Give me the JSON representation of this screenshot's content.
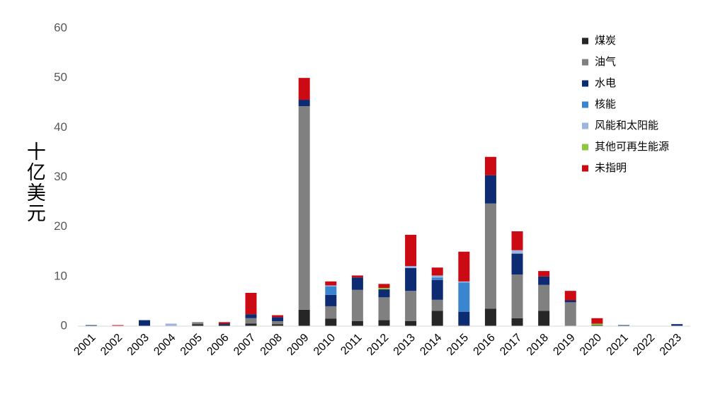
{
  "chart_data": {
    "type": "stacked_bar",
    "ylabel": "十亿美元",
    "categories": [
      "2001",
      "2002",
      "2003",
      "2004",
      "2005",
      "2006",
      "2007",
      "2008",
      "2009",
      "2010",
      "2011",
      "2012",
      "2013",
      "2014",
      "2015",
      "2016",
      "2017",
      "2018",
      "2019",
      "2020",
      "2021",
      "2022",
      "2023"
    ],
    "ylim": [
      0,
      60
    ],
    "yticks": [
      0,
      10,
      20,
      30,
      40,
      50,
      60
    ],
    "grid": false,
    "legend": "upper right",
    "series": [
      {
        "name": "煤炭",
        "color": "#262626",
        "values": [
          0,
          0,
          0,
          0,
          0.4,
          0.3,
          0.5,
          0.4,
          3.3,
          1.5,
          1.0,
          1.2,
          1.0,
          3.1,
          0.2,
          3.5,
          1.6,
          3.1,
          0,
          0.2,
          0,
          0,
          0
        ]
      },
      {
        "name": "油气",
        "color": "#808080",
        "values": [
          0,
          0,
          0,
          0,
          0.4,
          0,
          1.1,
          0.6,
          41.0,
          2.5,
          6.3,
          4.6,
          6.1,
          2.2,
          0,
          21.2,
          8.8,
          5.2,
          4.8,
          0,
          0,
          0,
          0
        ]
      },
      {
        "name": "水电",
        "color": "#0d2b73",
        "values": [
          0.2,
          0,
          1.2,
          0,
          0,
          0.2,
          0.8,
          0.8,
          1.3,
          2.3,
          2.5,
          1.6,
          4.6,
          4.0,
          2.7,
          5.7,
          4.2,
          1.7,
          0.4,
          0,
          0.2,
          0,
          0.4
        ]
      },
      {
        "name": "核能",
        "color": "#3a85d0",
        "values": [
          0,
          0,
          0,
          0,
          0,
          0,
          0,
          0,
          0,
          1.7,
          0,
          0,
          0,
          0.5,
          5.9,
          0,
          0,
          0,
          0,
          0,
          0,
          0,
          0
        ]
      },
      {
        "name": "风能和太阳能",
        "color": "#9db4e0",
        "values": [
          0,
          0,
          0,
          0.5,
          0,
          0,
          0,
          0,
          0,
          0.2,
          0,
          0,
          0.4,
          0.4,
          0.2,
          0,
          0.7,
          0,
          0,
          0,
          0,
          0,
          0
        ]
      },
      {
        "name": "其他可再生能源",
        "color": "#8dc63f",
        "values": [
          0,
          0,
          0,
          0,
          0,
          0,
          0,
          0,
          0,
          0,
          0,
          0.3,
          0,
          0,
          0,
          0,
          0,
          0,
          0,
          0.3,
          0,
          0,
          0
        ]
      },
      {
        "name": "未指明",
        "color": "#cc0a14",
        "values": [
          0,
          0.2,
          0,
          0,
          0,
          0.3,
          4.3,
          0.4,
          4.4,
          0.8,
          0.4,
          0.8,
          6.3,
          1.6,
          6.0,
          3.7,
          3.8,
          1.1,
          1.9,
          1.1,
          0,
          0,
          0
        ]
      }
    ]
  }
}
